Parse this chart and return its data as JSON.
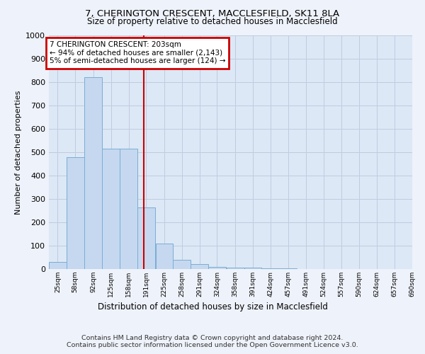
{
  "title1": "7, CHERINGTON CRESCENT, MACCLESFIELD, SK11 8LA",
  "title2": "Size of property relative to detached houses in Macclesfield",
  "xlabel": "Distribution of detached houses by size in Macclesfield",
  "ylabel": "Number of detached properties",
  "bin_labels": [
    "25sqm",
    "58sqm",
    "92sqm",
    "125sqm",
    "158sqm",
    "191sqm",
    "225sqm",
    "258sqm",
    "291sqm",
    "324sqm",
    "358sqm",
    "391sqm",
    "424sqm",
    "457sqm",
    "491sqm",
    "524sqm",
    "557sqm",
    "590sqm",
    "624sqm",
    "657sqm",
    "690sqm"
  ],
  "bin_starts": [
    25,
    58,
    92,
    125,
    158,
    191,
    225,
    258,
    291,
    324,
    358,
    391,
    424,
    457,
    491,
    524,
    557,
    590,
    624,
    657
  ],
  "bin_width": 33,
  "bar_heights": [
    30,
    480,
    820,
    515,
    515,
    265,
    110,
    40,
    20,
    10,
    7,
    5,
    3,
    2,
    1,
    1,
    1,
    0,
    0,
    0
  ],
  "bar_color": "#c5d8f0",
  "bar_edge_color": "#7aadd4",
  "vline_x": 203,
  "vline_color": "#cc0000",
  "annotation_title": "7 CHERINGTON CRESCENT: 203sqm",
  "annotation_line1": "← 94% of detached houses are smaller (2,143)",
  "annotation_line2": "5% of semi-detached houses are larger (124) →",
  "annotation_box_color": "#cc0000",
  "ylim": [
    0,
    1000
  ],
  "yticks": [
    0,
    100,
    200,
    300,
    400,
    500,
    600,
    700,
    800,
    900,
    1000
  ],
  "bg_color": "#eef2fa",
  "plot_bg_color": "#dce8f5",
  "grid_color": "#c0cce0",
  "footer1": "Contains HM Land Registry data © Crown copyright and database right 2024.",
  "footer2": "Contains public sector information licensed under the Open Government Licence v3.0."
}
